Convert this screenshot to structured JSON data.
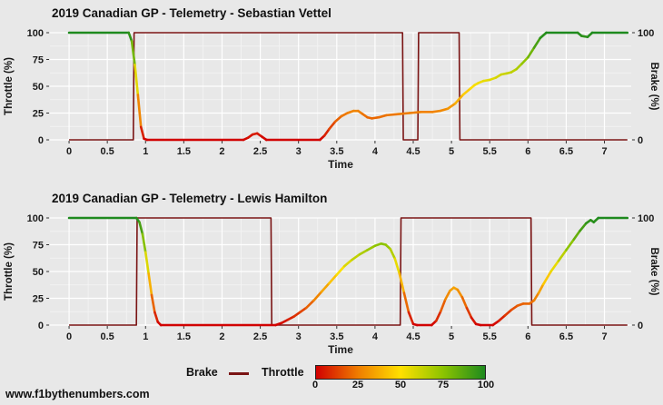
{
  "page": {
    "watermark": "www.f1bythenumbers.com",
    "background": "#e8e8e8"
  },
  "legend": {
    "brake_label": "Brake",
    "throttle_label": "Throttle",
    "gradient_ticks": [
      "0",
      "25",
      "50",
      "75",
      "100"
    ]
  },
  "colors": {
    "brake": "#7a1414",
    "throttle_stops": [
      "#d10000",
      "#ef7d00",
      "#ffe000",
      "#8dc400",
      "#1e8a1e"
    ],
    "grid_major": "#ffffff",
    "grid_minor": "#f4f4f4",
    "text": "#1a1a1a"
  },
  "chart_data": [
    {
      "type": "line",
      "title": "2019 Canadian GP - Telemetry - Sebastian Vettel",
      "xlabel": "Time",
      "ylabel_left": "Throttle (%)",
      "ylabel_right": "Brake (%)",
      "xlim": [
        -0.25,
        7.35
      ],
      "ylim": [
        0,
        100
      ],
      "x_ticks": [
        0,
        0.5,
        1,
        1.5,
        2,
        2.5,
        3,
        3.5,
        4,
        4.5,
        5,
        5.5,
        6,
        6.5,
        7
      ],
      "y_ticks_left": [
        0,
        25,
        50,
        75,
        100
      ],
      "y_ticks_right": [
        0,
        100
      ],
      "grid": true,
      "series": [
        {
          "name": "Throttle",
          "color_by_value": true,
          "points": [
            [
              0,
              100
            ],
            [
              0.78,
              100
            ],
            [
              0.82,
              92
            ],
            [
              0.86,
              70
            ],
            [
              0.9,
              42
            ],
            [
              0.94,
              12
            ],
            [
              0.98,
              1
            ],
            [
              1.02,
              0
            ],
            [
              2.28,
              0
            ],
            [
              2.34,
              2
            ],
            [
              2.4,
              5
            ],
            [
              2.46,
              6
            ],
            [
              2.52,
              3
            ],
            [
              2.58,
              0
            ],
            [
              3.28,
              0
            ],
            [
              3.34,
              4
            ],
            [
              3.4,
              10
            ],
            [
              3.48,
              17
            ],
            [
              3.56,
              22
            ],
            [
              3.64,
              25
            ],
            [
              3.72,
              27
            ],
            [
              3.78,
              27
            ],
            [
              3.84,
              24
            ],
            [
              3.9,
              21
            ],
            [
              3.96,
              20
            ],
            [
              4.05,
              21
            ],
            [
              4.15,
              23
            ],
            [
              4.3,
              24
            ],
            [
              4.45,
              25
            ],
            [
              4.6,
              26
            ],
            [
              4.75,
              26
            ],
            [
              4.85,
              27
            ],
            [
              4.95,
              29
            ],
            [
              5.05,
              34
            ],
            [
              5.15,
              42
            ],
            [
              5.25,
              48
            ],
            [
              5.3,
              51
            ],
            [
              5.35,
              53
            ],
            [
              5.42,
              55
            ],
            [
              5.5,
              56
            ],
            [
              5.58,
              58
            ],
            [
              5.65,
              61
            ],
            [
              5.72,
              62
            ],
            [
              5.78,
              63
            ],
            [
              5.85,
              66
            ],
            [
              5.92,
              71
            ],
            [
              6.0,
              77
            ],
            [
              6.08,
              86
            ],
            [
              6.16,
              95
            ],
            [
              6.24,
              100
            ],
            [
              6.65,
              100
            ],
            [
              6.7,
              97
            ],
            [
              6.78,
              96
            ],
            [
              6.84,
              100
            ],
            [
              7.3,
              100
            ]
          ]
        },
        {
          "name": "Brake",
          "color_by_value": false,
          "points": [
            [
              0,
              0
            ],
            [
              0.84,
              0
            ],
            [
              0.85,
              100
            ],
            [
              4.36,
              100
            ],
            [
              4.37,
              0
            ],
            [
              4.56,
              0
            ],
            [
              4.57,
              100
            ],
            [
              5.1,
              100
            ],
            [
              5.11,
              0
            ],
            [
              7.3,
              0
            ]
          ]
        }
      ]
    },
    {
      "type": "line",
      "title": "2019 Canadian GP - Telemetry - Lewis Hamilton",
      "xlabel": "Time",
      "ylabel_left": "Throttle (%)",
      "ylabel_right": "Brake (%)",
      "xlim": [
        -0.25,
        7.35
      ],
      "ylim": [
        0,
        100
      ],
      "x_ticks": [
        0,
        0.5,
        1,
        1.5,
        2,
        2.5,
        3,
        3.5,
        4,
        4.5,
        5,
        5.5,
        6,
        6.5,
        7
      ],
      "y_ticks_left": [
        0,
        25,
        50,
        75,
        100
      ],
      "y_ticks_right": [
        0,
        100
      ],
      "grid": true,
      "series": [
        {
          "name": "Throttle",
          "color_by_value": true,
          "points": [
            [
              0,
              100
            ],
            [
              0.88,
              100
            ],
            [
              0.92,
              96
            ],
            [
              0.96,
              85
            ],
            [
              1.0,
              68
            ],
            [
              1.04,
              48
            ],
            [
              1.08,
              28
            ],
            [
              1.12,
              12
            ],
            [
              1.16,
              3
            ],
            [
              1.2,
              0
            ],
            [
              2.7,
              0
            ],
            [
              2.78,
              2
            ],
            [
              2.86,
              5
            ],
            [
              2.94,
              8
            ],
            [
              3.02,
              12
            ],
            [
              3.1,
              16
            ],
            [
              3.2,
              23
            ],
            [
              3.3,
              31
            ],
            [
              3.4,
              39
            ],
            [
              3.5,
              47
            ],
            [
              3.6,
              55
            ],
            [
              3.7,
              61
            ],
            [
              3.8,
              66
            ],
            [
              3.9,
              70
            ],
            [
              4.0,
              74
            ],
            [
              4.08,
              76
            ],
            [
              4.14,
              75
            ],
            [
              4.2,
              71
            ],
            [
              4.26,
              62
            ],
            [
              4.32,
              48
            ],
            [
              4.38,
              30
            ],
            [
              4.44,
              12
            ],
            [
              4.5,
              1
            ],
            [
              4.55,
              0
            ],
            [
              4.74,
              0
            ],
            [
              4.8,
              4
            ],
            [
              4.86,
              13
            ],
            [
              4.92,
              24
            ],
            [
              4.98,
              32
            ],
            [
              5.03,
              35
            ],
            [
              5.08,
              33
            ],
            [
              5.14,
              26
            ],
            [
              5.2,
              16
            ],
            [
              5.26,
              7
            ],
            [
              5.32,
              1
            ],
            [
              5.38,
              0
            ],
            [
              5.54,
              0
            ],
            [
              5.62,
              4
            ],
            [
              5.7,
              9
            ],
            [
              5.78,
              14
            ],
            [
              5.86,
              18
            ],
            [
              5.94,
              20
            ],
            [
              6.02,
              20
            ],
            [
              6.08,
              23
            ],
            [
              6.14,
              30
            ],
            [
              6.2,
              38
            ],
            [
              6.3,
              50
            ],
            [
              6.4,
              60
            ],
            [
              6.5,
              70
            ],
            [
              6.6,
              80
            ],
            [
              6.68,
              88
            ],
            [
              6.76,
              95
            ],
            [
              6.82,
              98
            ],
            [
              6.86,
              96
            ],
            [
              6.92,
              100
            ],
            [
              7.3,
              100
            ]
          ]
        },
        {
          "name": "Brake",
          "color_by_value": false,
          "points": [
            [
              0,
              0
            ],
            [
              0.88,
              0
            ],
            [
              0.89,
              100
            ],
            [
              2.64,
              100
            ],
            [
              2.65,
              0
            ],
            [
              4.33,
              0
            ],
            [
              4.34,
              100
            ],
            [
              6.04,
              100
            ],
            [
              6.05,
              0
            ],
            [
              7.3,
              0
            ]
          ]
        }
      ]
    }
  ]
}
